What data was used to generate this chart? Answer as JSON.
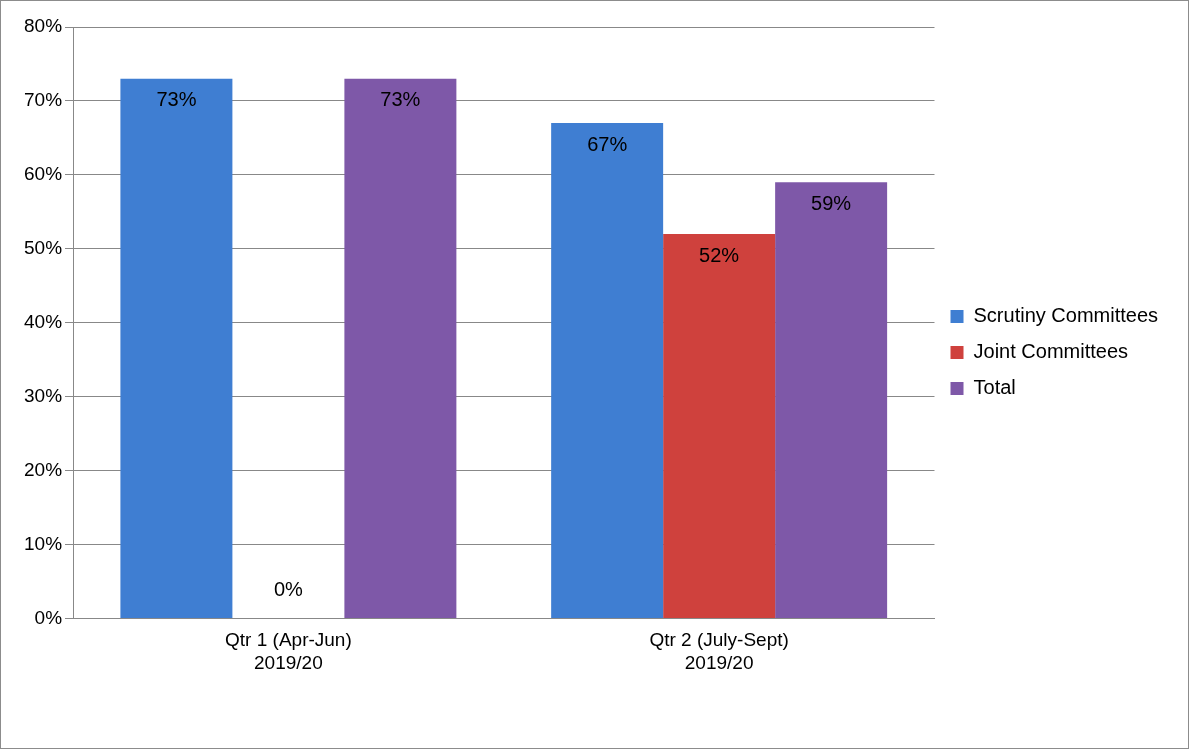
{
  "chart_data": {
    "type": "bar",
    "categories": [
      "Qtr 1 (Apr-Jun)\n2019/20",
      "Qtr 2 (July-Sept)\n2019/20"
    ],
    "series": [
      {
        "name": "Scrutiny Committees",
        "color": "#3f7ed2",
        "values": [
          73,
          67
        ],
        "value_labels": [
          "73%",
          "67%"
        ]
      },
      {
        "name": "Joint Committees",
        "color": "#cf413d",
        "values": [
          0,
          52
        ],
        "value_labels": [
          "0%",
          "52%"
        ]
      },
      {
        "name": "Total",
        "color": "#7e58a8",
        "values": [
          73,
          59
        ],
        "value_labels": [
          "73%",
          "59%"
        ]
      }
    ],
    "ylim": [
      0,
      80
    ],
    "yticks": [
      {
        "value": 0,
        "label": "0%"
      },
      {
        "value": 10,
        "label": "10%"
      },
      {
        "value": 20,
        "label": "20%"
      },
      {
        "value": 30,
        "label": "30%"
      },
      {
        "value": 40,
        "label": "40%"
      },
      {
        "value": 50,
        "label": "50%"
      },
      {
        "value": 60,
        "label": "60%"
      },
      {
        "value": 70,
        "label": "70%"
      },
      {
        "value": 80,
        "label": "80%"
      }
    ],
    "grid": "y",
    "legend": "right"
  }
}
